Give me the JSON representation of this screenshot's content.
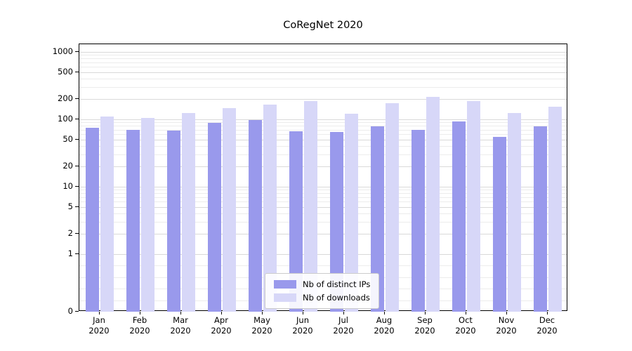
{
  "title": "CoRegNet 2020",
  "colors": {
    "distinct_ips": "#9999ec",
    "downloads": "#d7d7f8",
    "grid_major": "#d9d9d9",
    "grid_minor": "#ececec",
    "spine": "#000000"
  },
  "chart_data": {
    "type": "bar",
    "title": "CoRegNet 2020",
    "categories": [
      "Jan 2020",
      "Feb 2020",
      "Mar 2020",
      "Apr 2020",
      "May 2020",
      "Jun 2020",
      "Jul 2020",
      "Aug 2020",
      "Sep 2020",
      "Oct 2020",
      "Nov 2020",
      "Dec 2020"
    ],
    "x_tick_lines": [
      [
        "Jan",
        "2020"
      ],
      [
        "Feb",
        "2020"
      ],
      [
        "Mar",
        "2020"
      ],
      [
        "Apr",
        "2020"
      ],
      [
        "May",
        "2020"
      ],
      [
        "Jun",
        "2020"
      ],
      [
        "Jul",
        "2020"
      ],
      [
        "Aug",
        "2020"
      ],
      [
        "Sep",
        "2020"
      ],
      [
        "Oct",
        "2020"
      ],
      [
        "Nov",
        "2020"
      ],
      [
        "Dec",
        "2020"
      ]
    ],
    "series": [
      {
        "name": "Nb of distinct IPs",
        "values": [
          75,
          70,
          68,
          89,
          97,
          66,
          65,
          78,
          70,
          92,
          55,
          78
        ]
      },
      {
        "name": "Nb of downloads",
        "values": [
          110,
          105,
          125,
          148,
          165,
          185,
          120,
          172,
          215,
          185,
          125,
          155
        ]
      }
    ],
    "yscale": "symlog",
    "yticks": [
      0,
      1,
      2,
      5,
      10,
      20,
      50,
      100,
      200,
      500,
      1000
    ],
    "ylim": [
      0,
      1300
    ],
    "xlabel": "",
    "ylabel": "",
    "grid": true,
    "legend_position": "lower center"
  }
}
